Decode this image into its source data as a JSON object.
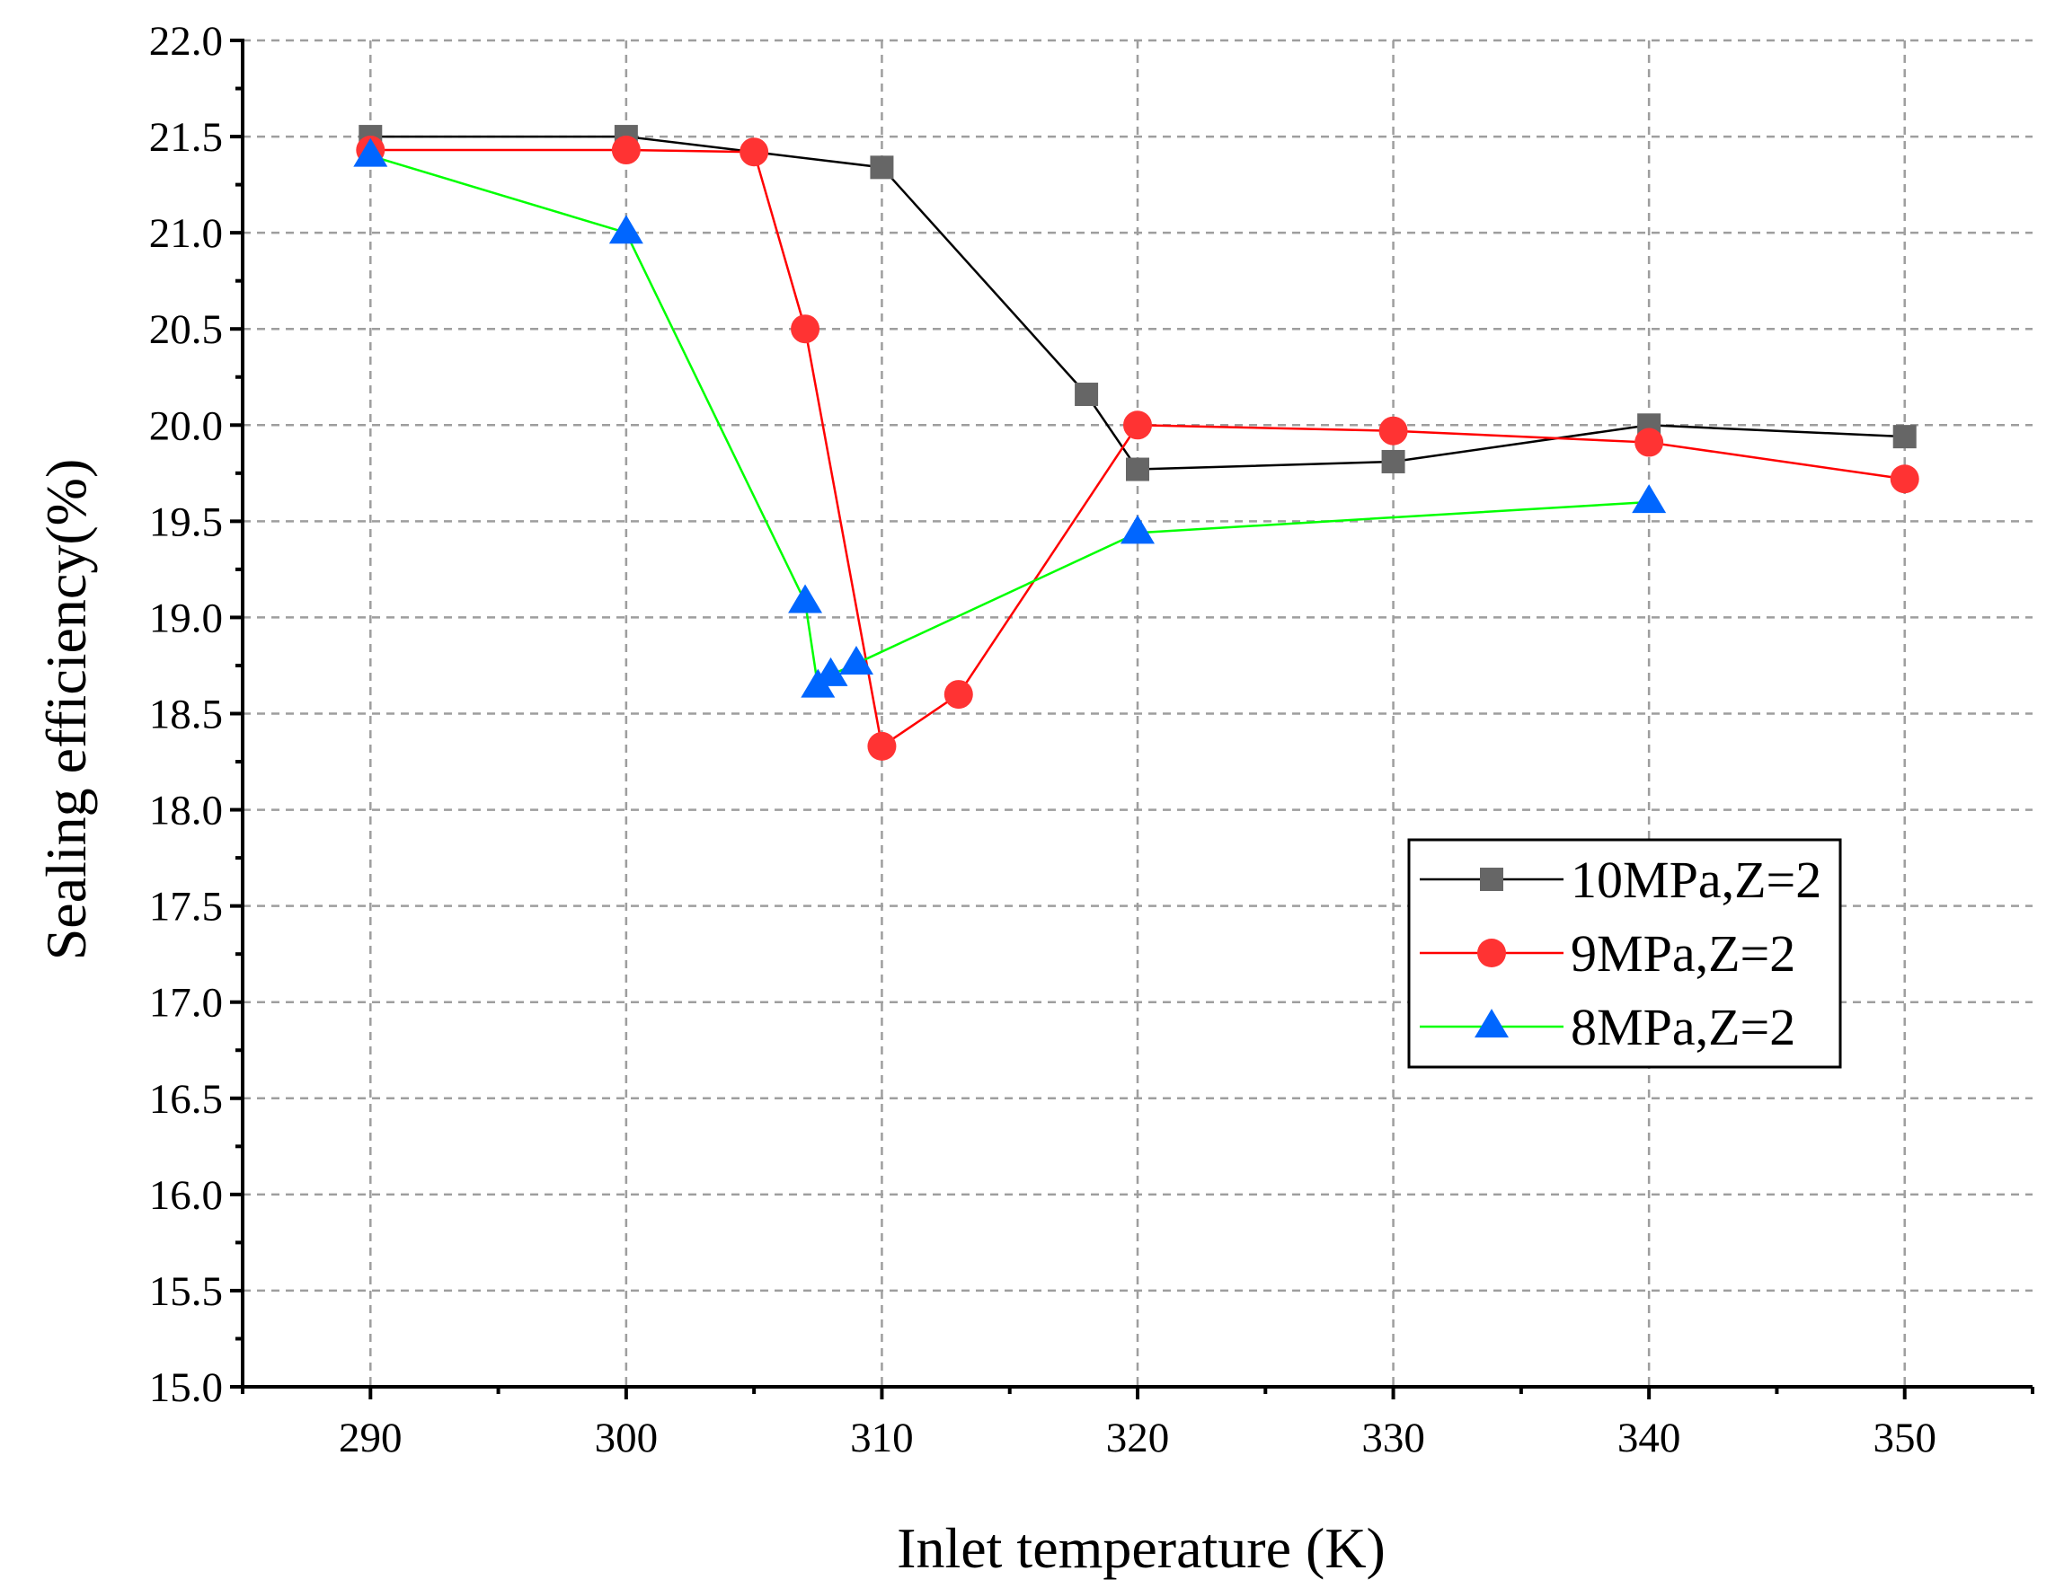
{
  "chart_data": {
    "type": "line",
    "title": "",
    "xlabel": "Inlet temperature (K)",
    "ylabel": "Sealing efficiency(%)",
    "xlim": [
      285,
      355
    ],
    "ylim": [
      15.0,
      22.0
    ],
    "x_ticks": [
      290,
      300,
      310,
      320,
      330,
      340,
      350
    ],
    "x_tick_labels": [
      "290",
      "300",
      "310",
      "320",
      "330",
      "340",
      "350"
    ],
    "x_minor_ticks": [
      285,
      295,
      305,
      315,
      325,
      335,
      345,
      355
    ],
    "y_ticks": [
      15.0,
      15.5,
      16.0,
      16.5,
      17.0,
      17.5,
      18.0,
      18.5,
      19.0,
      19.5,
      20.0,
      20.5,
      21.0,
      21.5,
      22.0
    ],
    "y_tick_labels": [
      "15.0",
      "15.5",
      "16.0",
      "16.5",
      "17.0",
      "17.5",
      "18.0",
      "18.5",
      "19.0",
      "19.5",
      "20.0",
      "20.5",
      "21.0",
      "21.5",
      "22.0"
    ],
    "grid": true,
    "legend_position": "center-right",
    "series": [
      {
        "name": "10MPa,Z=2",
        "line_color": "#000000",
        "marker": "square",
        "marker_color": "#666666",
        "x": [
          290,
          300,
          310,
          318,
          320,
          330,
          340,
          350
        ],
        "y": [
          21.5,
          21.5,
          21.34,
          20.16,
          19.77,
          19.81,
          20.0,
          19.94
        ]
      },
      {
        "name": "9MPa,Z=2",
        "line_color": "#ff0000",
        "marker": "circle",
        "marker_color": "#ff3333",
        "x": [
          290,
          300,
          305,
          307,
          310,
          313,
          320,
          330,
          340,
          350
        ],
        "y": [
          21.43,
          21.43,
          21.42,
          20.5,
          18.33,
          18.6,
          20.0,
          19.97,
          19.91,
          19.72
        ]
      },
      {
        "name": "8MPa,Z=2",
        "line_color": "#00ff00",
        "marker": "triangle",
        "marker_color": "#0066ff",
        "x": [
          290,
          300,
          307,
          307.5,
          308,
          309,
          320,
          340
        ],
        "y": [
          21.4,
          21.0,
          19.08,
          18.64,
          18.7,
          18.76,
          19.44,
          19.6
        ]
      }
    ]
  }
}
